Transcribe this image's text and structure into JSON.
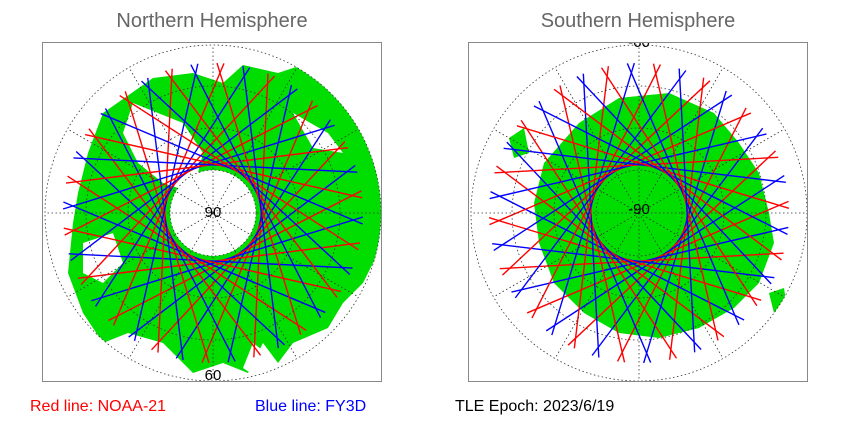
{
  "northern": {
    "title": "Northern Hemisphere",
    "pole_label": "90",
    "edge_label": "60"
  },
  "southern": {
    "title": "Southern Hemisphere",
    "pole_label": "-90",
    "edge_label": "-60"
  },
  "legend": {
    "red": "Red line: NOAA-21",
    "blue": "Blue line: FY3D",
    "epoch": "TLE Epoch: 2023/6/19"
  },
  "colors": {
    "land": "#00dd00",
    "track_red": "#ff0000",
    "track_blue": "#0000ff",
    "grid": "#333333"
  },
  "icons": {
    "north_map": "polar-map-north",
    "south_map": "polar-map-south"
  }
}
